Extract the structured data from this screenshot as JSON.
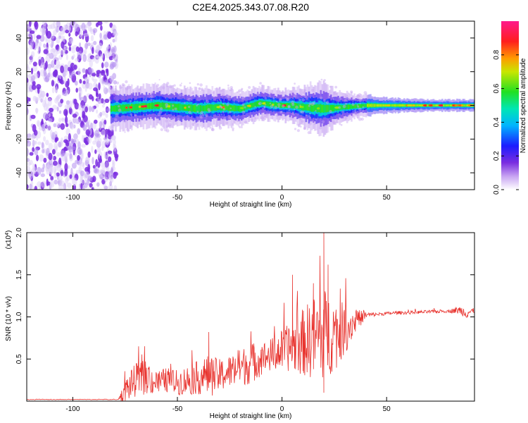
{
  "title": "C2E4.2025.343.07.08.R20",
  "chart_data": [
    {
      "type": "heatmap",
      "name": "spectrogram",
      "xlabel": "Height of straight line (km)",
      "ylabel": "Frequency (Hz)",
      "xlim": [
        -122,
        92
      ],
      "ylim": [
        -50,
        50
      ],
      "xticks": [
        -100,
        -50,
        0,
        50
      ],
      "yticks": [
        -40,
        -20,
        0,
        20,
        40
      ],
      "xtick_labels": [
        "-100",
        "-50",
        "0",
        "50"
      ],
      "ytick_labels": [
        "-40",
        "-20",
        "0",
        "20",
        "40"
      ],
      "noise_region_x": [
        -122,
        -82
      ],
      "band_center_profile": {
        "x": [
          -82,
          -70,
          -60,
          -50,
          -40,
          -30,
          -20,
          -12,
          -10,
          -5,
          0,
          5,
          10,
          20,
          30,
          40,
          50,
          60,
          70,
          80,
          92
        ],
        "y": [
          -2,
          -1,
          0,
          -1,
          -2,
          -1,
          -2,
          1,
          1.5,
          0.5,
          0,
          0,
          -1,
          -2,
          -1,
          0,
          0,
          0,
          0,
          0,
          0
        ]
      },
      "band_halfwidth_profile": {
        "x": [
          -82,
          -60,
          -40,
          -20,
          0,
          10,
          18,
          25,
          35,
          50,
          70,
          92
        ],
        "y": [
          7,
          7,
          7,
          6,
          5,
          7,
          9,
          6,
          4,
          2.5,
          2,
          2
        ]
      },
      "colorbar": {
        "label": "Normalized spectral amplitude",
        "range": [
          0,
          1
        ],
        "ticks": [
          0,
          0.2,
          0.4,
          0.6,
          0.8
        ],
        "tick_labels": [
          "0.0",
          "0.2",
          "0.4",
          "0.6",
          "0.8"
        ]
      }
    },
    {
      "type": "line",
      "name": "snr",
      "xlabel": "Height of straight line (km)",
      "ylabel": "SNR (10 * v/v)",
      "y_multiplier": "(x10",
      "y_multiplier_exp": "4",
      "y_multiplier_close": ")",
      "xlim": [
        -122,
        92
      ],
      "ylim": [
        0,
        2.0
      ],
      "xticks": [
        -100,
        -50,
        0,
        50
      ],
      "yticks": [
        0.5,
        1.0,
        1.5,
        2.0
      ],
      "xtick_labels": [
        "-100",
        "-50",
        "0",
        "50"
      ],
      "ytick_labels": [
        "0.5",
        "1.0",
        "1.5",
        "2.0"
      ],
      "color": "#e8322d",
      "baseline_x": [
        -122,
        -78
      ],
      "baseline_y": 0.02,
      "envelope": {
        "x": [
          -78,
          -74,
          -70,
          -65,
          -60,
          -55,
          -50,
          -45,
          -40,
          -35,
          -30,
          -25,
          -20,
          -15,
          -10,
          -5,
          0,
          5,
          10,
          15,
          20,
          25,
          30,
          35,
          40,
          45,
          50,
          55,
          60,
          70,
          80,
          85,
          88,
          92
        ],
        "mean": [
          0.03,
          0.15,
          0.25,
          0.28,
          0.22,
          0.25,
          0.22,
          0.25,
          0.28,
          0.3,
          0.3,
          0.35,
          0.4,
          0.45,
          0.5,
          0.55,
          0.6,
          0.65,
          0.7,
          0.75,
          0.8,
          0.8,
          0.85,
          0.95,
          1.02,
          1.03,
          1.04,
          1.05,
          1.05,
          1.06,
          1.07,
          1.08,
          1.05,
          1.07
        ],
        "spread": [
          0.03,
          0.15,
          0.2,
          0.2,
          0.15,
          0.15,
          0.15,
          0.18,
          0.2,
          0.25,
          0.2,
          0.2,
          0.22,
          0.25,
          0.2,
          0.2,
          0.25,
          0.3,
          0.4,
          0.5,
          0.55,
          0.45,
          0.3,
          0.15,
          0.04,
          0.02,
          0.02,
          0.02,
          0.02,
          0.02,
          0.02,
          0.05,
          0.07,
          0.03
        ]
      },
      "peaks": [
        {
          "x": -35,
          "y": 0.82
        },
        {
          "x": 5,
          "y": 1.5
        },
        {
          "x": 20,
          "y": 2.0
        },
        {
          "x": 20,
          "y": 0.1
        },
        {
          "x": 22,
          "y": 1.62
        },
        {
          "x": 15,
          "y": 1.4
        }
      ]
    }
  ]
}
